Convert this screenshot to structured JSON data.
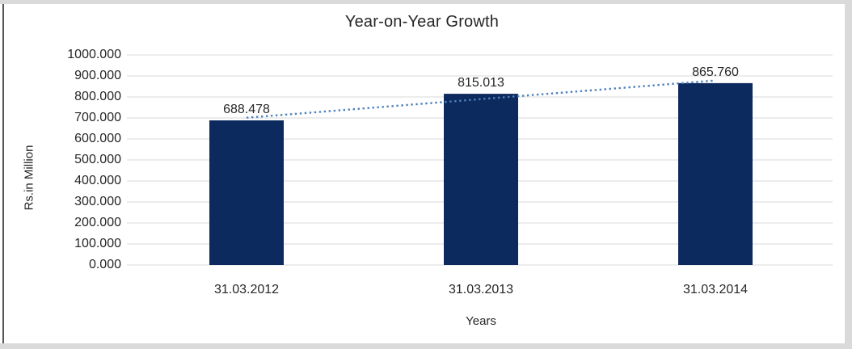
{
  "chart_data": {
    "type": "bar",
    "title": "Year-on-Year Growth",
    "categories": [
      "31.03.2012",
      "31.03.2013",
      "31.03.2014"
    ],
    "values": [
      688.478,
      815.013,
      865.76
    ],
    "data_labels": [
      "688.478",
      "815.013",
      "865.760"
    ],
    "xlabel": "Years",
    "ylabel": "Rs.in Million",
    "ylim": [
      0,
      1000
    ],
    "ytick_step": 100,
    "ytick_labels": [
      "0.000",
      "100.000",
      "200.000",
      "300.000",
      "400.000",
      "500.000",
      "600.000",
      "700.000",
      "800.000",
      "900.000",
      "1000.000"
    ],
    "grid": true,
    "legend": "none",
    "trendline": {
      "type": "linear",
      "style": "dotted"
    },
    "colors": {
      "bar": "#0D2A5E",
      "trendline": "#4E81BD",
      "gridline": "#D9D9D9",
      "text": "#262626",
      "frame_light": "#DADADA",
      "frame_dark": "#555555",
      "background": "#FFFFFF"
    }
  }
}
